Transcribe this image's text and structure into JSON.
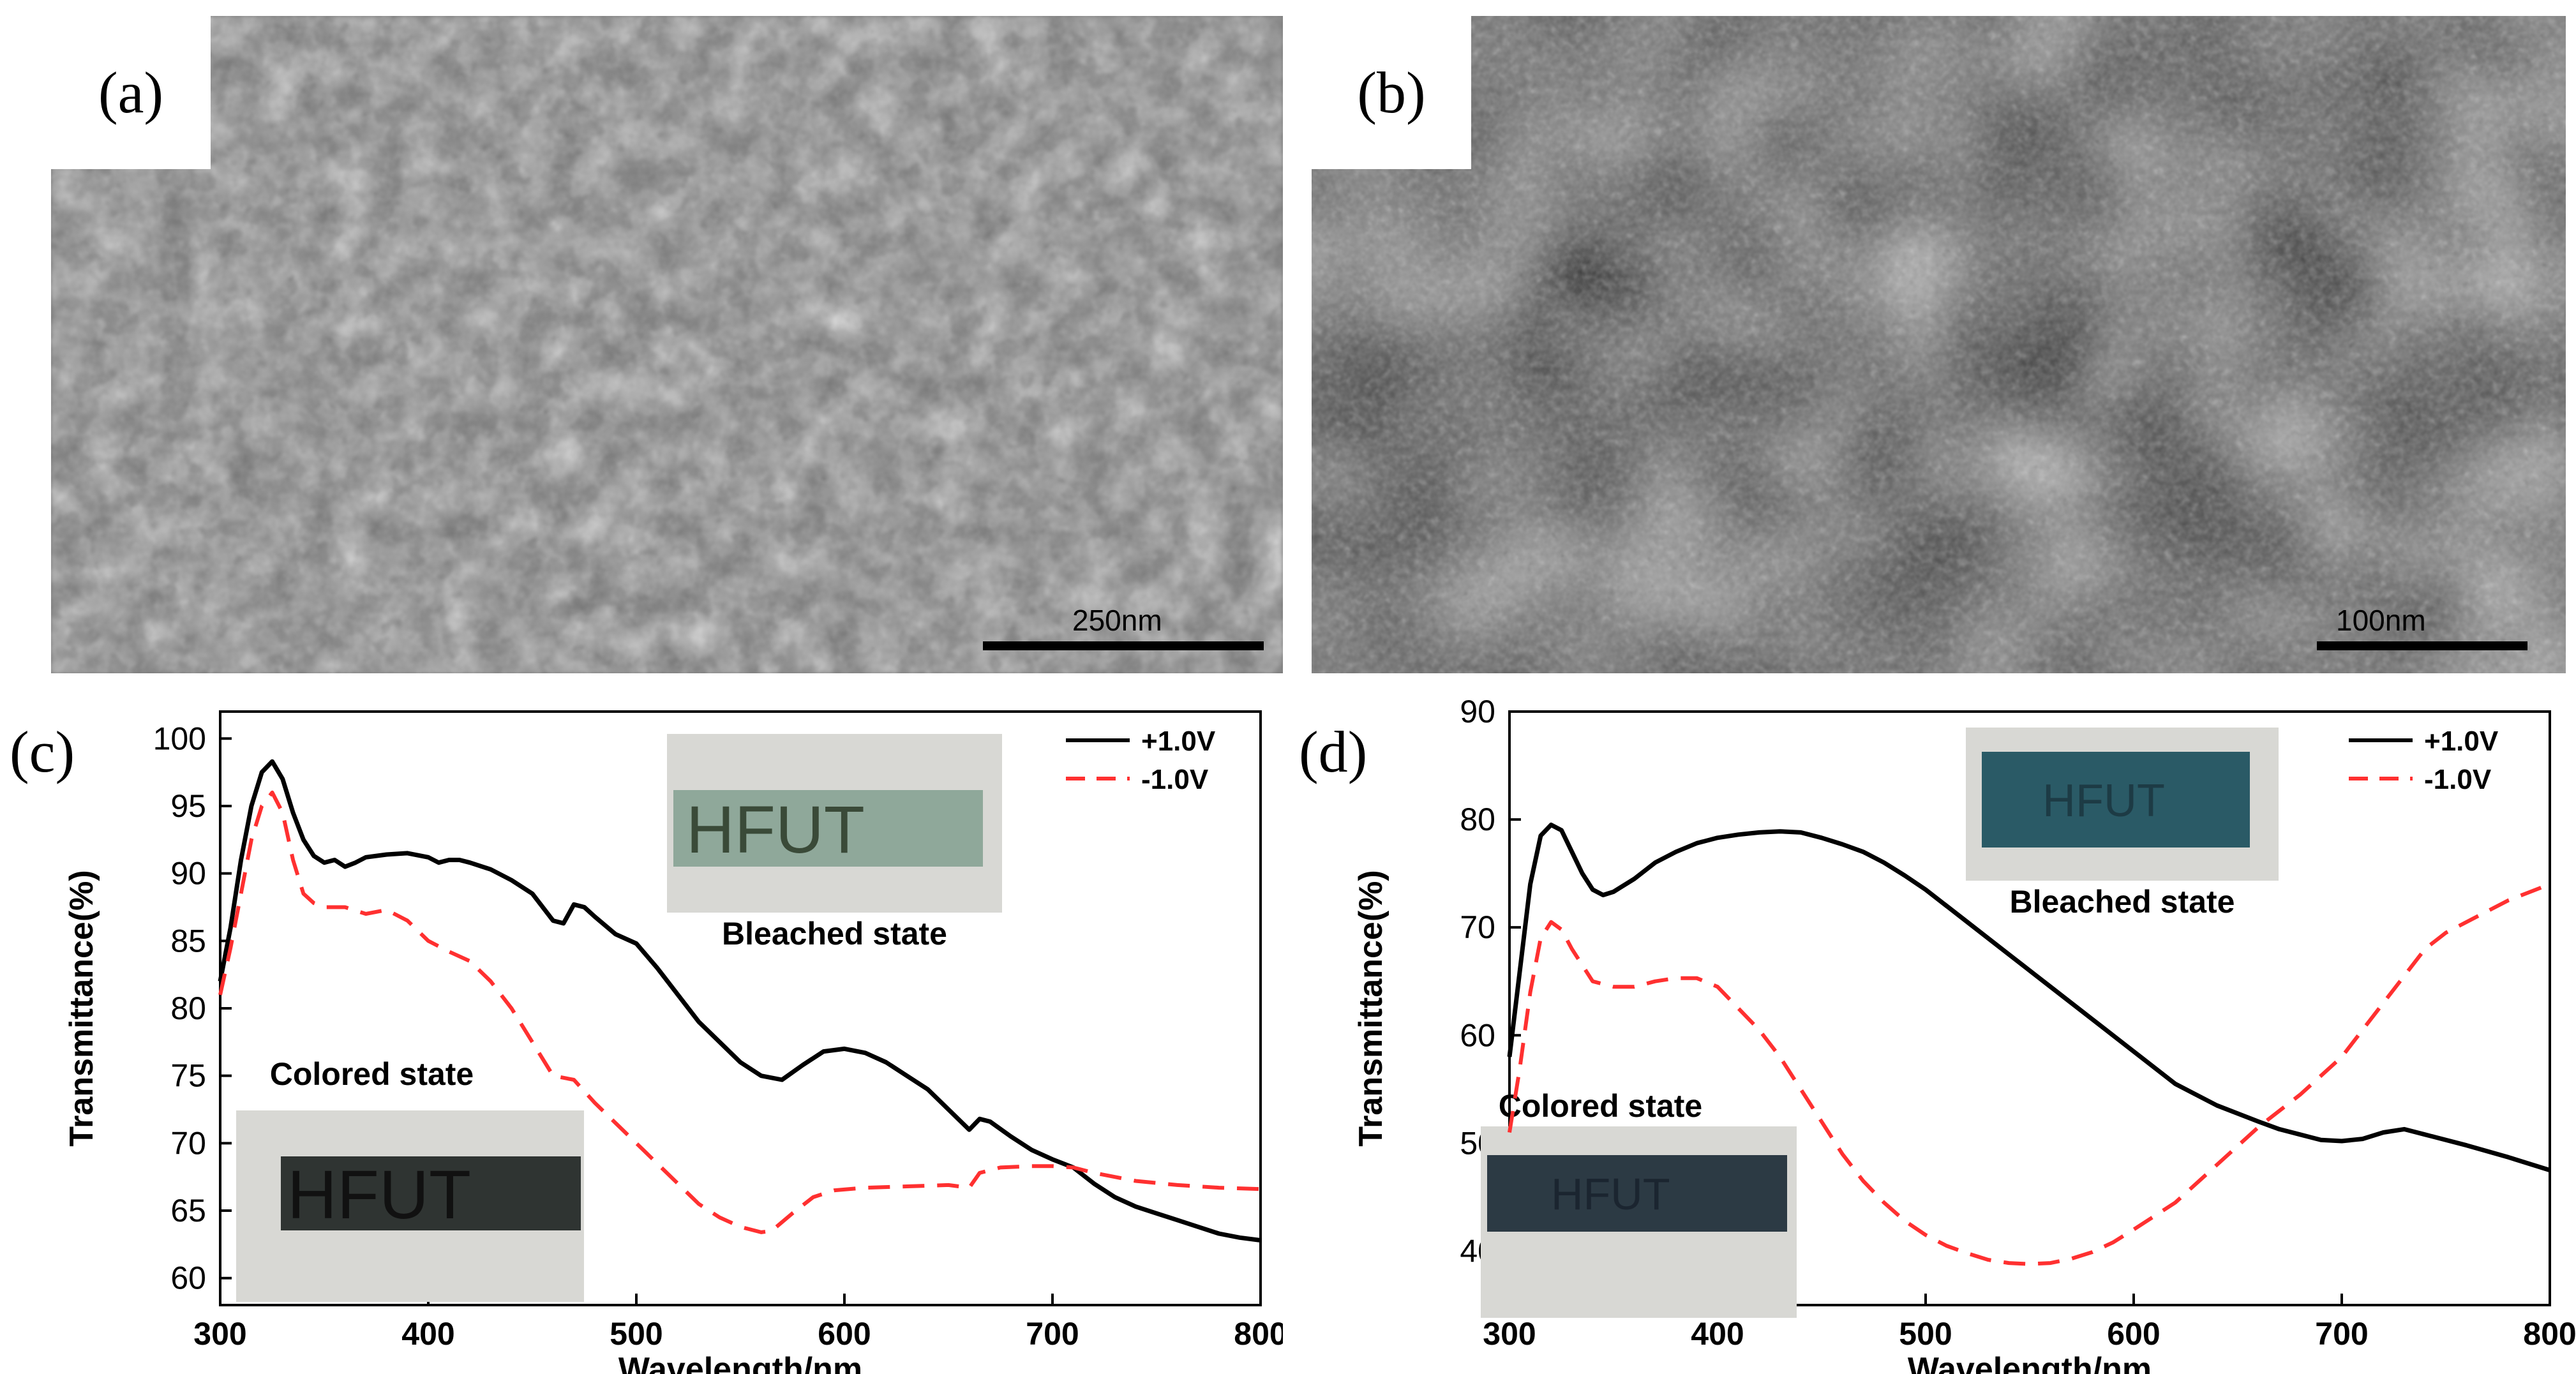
{
  "panels": {
    "a": {
      "label": "(a)",
      "scale_label": "250nm"
    },
    "b": {
      "label": "(b)",
      "scale_label": "100nm"
    },
    "c": {
      "label": "(c)"
    },
    "d": {
      "label": "(d)"
    }
  },
  "colors": {
    "plus": "#000000",
    "minus": "#ff3030"
  },
  "chart_data": [
    {
      "id": "c",
      "type": "line",
      "xlabel": "Wavelength/nm",
      "ylabel": "Transmittance(%)",
      "xlim": [
        300,
        800
      ],
      "ylim": [
        58,
        102
      ],
      "xticks": [
        300,
        400,
        500,
        600,
        700,
        800
      ],
      "yticks": [
        60,
        65,
        70,
        75,
        80,
        85,
        90,
        95,
        100
      ],
      "legend_position": "top-right",
      "series": [
        {
          "name": "+1.0V",
          "style": "solid",
          "color": "#000000",
          "points": [
            [
              300,
              82
            ],
            [
              305,
              86
            ],
            [
              310,
              91
            ],
            [
              315,
              95
            ],
            [
              320,
              97.5
            ],
            [
              325,
              98.3
            ],
            [
              330,
              97
            ],
            [
              335,
              94.5
            ],
            [
              340,
              92.5
            ],
            [
              345,
              91.3
            ],
            [
              350,
              90.8
            ],
            [
              355,
              91
            ],
            [
              360,
              90.5
            ],
            [
              365,
              90.8
            ],
            [
              370,
              91.2
            ],
            [
              380,
              91.4
            ],
            [
              390,
              91.5
            ],
            [
              400,
              91.2
            ],
            [
              405,
              90.8
            ],
            [
              410,
              91
            ],
            [
              415,
              91
            ],
            [
              420,
              90.8
            ],
            [
              430,
              90.3
            ],
            [
              440,
              89.5
            ],
            [
              450,
              88.5
            ],
            [
              460,
              86.5
            ],
            [
              465,
              86.3
            ],
            [
              470,
              87.7
            ],
            [
              475,
              87.5
            ],
            [
              480,
              86.8
            ],
            [
              490,
              85.5
            ],
            [
              500,
              84.8
            ],
            [
              510,
              83
            ],
            [
              520,
              81
            ],
            [
              530,
              79
            ],
            [
              540,
              77.5
            ],
            [
              550,
              76
            ],
            [
              560,
              75
            ],
            [
              570,
              74.7
            ],
            [
              580,
              75.8
            ],
            [
              590,
              76.8
            ],
            [
              600,
              77
            ],
            [
              610,
              76.7
            ],
            [
              620,
              76
            ],
            [
              630,
              75
            ],
            [
              640,
              74
            ],
            [
              650,
              72.5
            ],
            [
              660,
              71
            ],
            [
              665,
              71.8
            ],
            [
              670,
              71.6
            ],
            [
              680,
              70.5
            ],
            [
              690,
              69.5
            ],
            [
              700,
              68.8
            ],
            [
              710,
              68.2
            ],
            [
              720,
              67
            ],
            [
              730,
              66
            ],
            [
              740,
              65.3
            ],
            [
              750,
              64.8
            ],
            [
              760,
              64.3
            ],
            [
              770,
              63.8
            ],
            [
              780,
              63.3
            ],
            [
              790,
              63
            ],
            [
              800,
              62.8
            ]
          ]
        },
        {
          "name": "-1.0V",
          "style": "dashed",
          "color": "#ff3030",
          "points": [
            [
              300,
              81
            ],
            [
              305,
              84.5
            ],
            [
              310,
              88.5
            ],
            [
              315,
              92.5
            ],
            [
              320,
              95
            ],
            [
              325,
              96
            ],
            [
              330,
              94.5
            ],
            [
              335,
              91
            ],
            [
              340,
              88.5
            ],
            [
              345,
              87.8
            ],
            [
              350,
              87.5
            ],
            [
              360,
              87.5
            ],
            [
              370,
              87
            ],
            [
              380,
              87.3
            ],
            [
              390,
              86.5
            ],
            [
              400,
              85
            ],
            [
              410,
              84.2
            ],
            [
              420,
              83.5
            ],
            [
              430,
              82
            ],
            [
              440,
              80
            ],
            [
              450,
              77.5
            ],
            [
              460,
              75
            ],
            [
              470,
              74.7
            ],
            [
              480,
              73
            ],
            [
              490,
              71.5
            ],
            [
              500,
              70
            ],
            [
              510,
              68.5
            ],
            [
              520,
              67
            ],
            [
              530,
              65.5
            ],
            [
              540,
              64.5
            ],
            [
              550,
              63.8
            ],
            [
              560,
              63.4
            ],
            [
              565,
              63.5
            ],
            [
              575,
              64.8
            ],
            [
              585,
              66
            ],
            [
              595,
              66.5
            ],
            [
              610,
              66.7
            ],
            [
              630,
              66.8
            ],
            [
              650,
              66.9
            ],
            [
              660,
              66.7
            ],
            [
              665,
              67.8
            ],
            [
              675,
              68.2
            ],
            [
              690,
              68.3
            ],
            [
              700,
              68.3
            ],
            [
              710,
              68.2
            ],
            [
              720,
              67.8
            ],
            [
              740,
              67.2
            ],
            [
              760,
              66.9
            ],
            [
              780,
              66.7
            ],
            [
              800,
              66.6
            ]
          ]
        }
      ],
      "inset_top": {
        "text": "HFUT",
        "caption": "Bleached state"
      },
      "inset_bottom": {
        "text": "HFUT",
        "caption": "Colored state"
      }
    },
    {
      "id": "d",
      "type": "line",
      "xlabel": "Wavelength/nm",
      "ylabel": "Transmittance(%)",
      "xlim": [
        300,
        800
      ],
      "ylim": [
        35,
        90
      ],
      "xticks": [
        300,
        400,
        500,
        600,
        700,
        800
      ],
      "yticks": [
        40,
        50,
        60,
        70,
        80,
        90
      ],
      "legend_position": "top-right",
      "series": [
        {
          "name": "+1.0V",
          "style": "solid",
          "color": "#000000",
          "points": [
            [
              300,
              58
            ],
            [
              305,
              66
            ],
            [
              310,
              74
            ],
            [
              315,
              78.5
            ],
            [
              320,
              79.5
            ],
            [
              325,
              79
            ],
            [
              330,
              77
            ],
            [
              335,
              75
            ],
            [
              340,
              73.5
            ],
            [
              345,
              73
            ],
            [
              350,
              73.3
            ],
            [
              360,
              74.5
            ],
            [
              370,
              76
            ],
            [
              380,
              77
            ],
            [
              390,
              77.8
            ],
            [
              400,
              78.3
            ],
            [
              410,
              78.6
            ],
            [
              420,
              78.8
            ],
            [
              430,
              78.9
            ],
            [
              440,
              78.8
            ],
            [
              450,
              78.3
            ],
            [
              460,
              77.7
            ],
            [
              470,
              77
            ],
            [
              480,
              76
            ],
            [
              490,
              74.8
            ],
            [
              500,
              73.5
            ],
            [
              520,
              70.5
            ],
            [
              540,
              67.5
            ],
            [
              560,
              64.5
            ],
            [
              580,
              61.5
            ],
            [
              600,
              58.5
            ],
            [
              620,
              55.5
            ],
            [
              640,
              53.5
            ],
            [
              660,
              52
            ],
            [
              670,
              51.3
            ],
            [
              680,
              50.8
            ],
            [
              690,
              50.3
            ],
            [
              700,
              50.2
            ],
            [
              710,
              50.4
            ],
            [
              720,
              51
            ],
            [
              730,
              51.3
            ],
            [
              740,
              50.8
            ],
            [
              760,
              49.8
            ],
            [
              780,
              48.7
            ],
            [
              800,
              47.5
            ]
          ]
        },
        {
          "name": "-1.0V",
          "style": "dashed",
          "color": "#ff3030",
          "points": [
            [
              300,
              51
            ],
            [
              305,
              57
            ],
            [
              310,
              64
            ],
            [
              315,
              69
            ],
            [
              320,
              70.5
            ],
            [
              325,
              69.8
            ],
            [
              330,
              68
            ],
            [
              335,
              66.5
            ],
            [
              340,
              65
            ],
            [
              350,
              64.5
            ],
            [
              360,
              64.5
            ],
            [
              370,
              65
            ],
            [
              380,
              65.3
            ],
            [
              390,
              65.3
            ],
            [
              400,
              64.5
            ],
            [
              410,
              62.5
            ],
            [
              420,
              60.5
            ],
            [
              430,
              58
            ],
            [
              440,
              55
            ],
            [
              450,
              52
            ],
            [
              460,
              49
            ],
            [
              470,
              46.5
            ],
            [
              480,
              44.5
            ],
            [
              490,
              42.8
            ],
            [
              500,
              41.5
            ],
            [
              510,
              40.5
            ],
            [
              520,
              39.8
            ],
            [
              530,
              39.2
            ],
            [
              540,
              38.9
            ],
            [
              550,
              38.8
            ],
            [
              560,
              38.9
            ],
            [
              570,
              39.3
            ],
            [
              580,
              39.9
            ],
            [
              590,
              40.8
            ],
            [
              600,
              42
            ],
            [
              620,
              44.5
            ],
            [
              640,
              48
            ],
            [
              660,
              51.5
            ],
            [
              680,
              54.5
            ],
            [
              700,
              58
            ],
            [
              710,
              60.5
            ],
            [
              720,
              63
            ],
            [
              730,
              65.5
            ],
            [
              740,
              68
            ],
            [
              750,
              69.5
            ],
            [
              760,
              70.5
            ],
            [
              780,
              72.5
            ],
            [
              800,
              74
            ]
          ]
        }
      ],
      "inset_top": {
        "text": "HFUT",
        "caption": "Bleached state"
      },
      "inset_bottom": {
        "text": "HFUT",
        "caption": "Colored state"
      }
    }
  ]
}
